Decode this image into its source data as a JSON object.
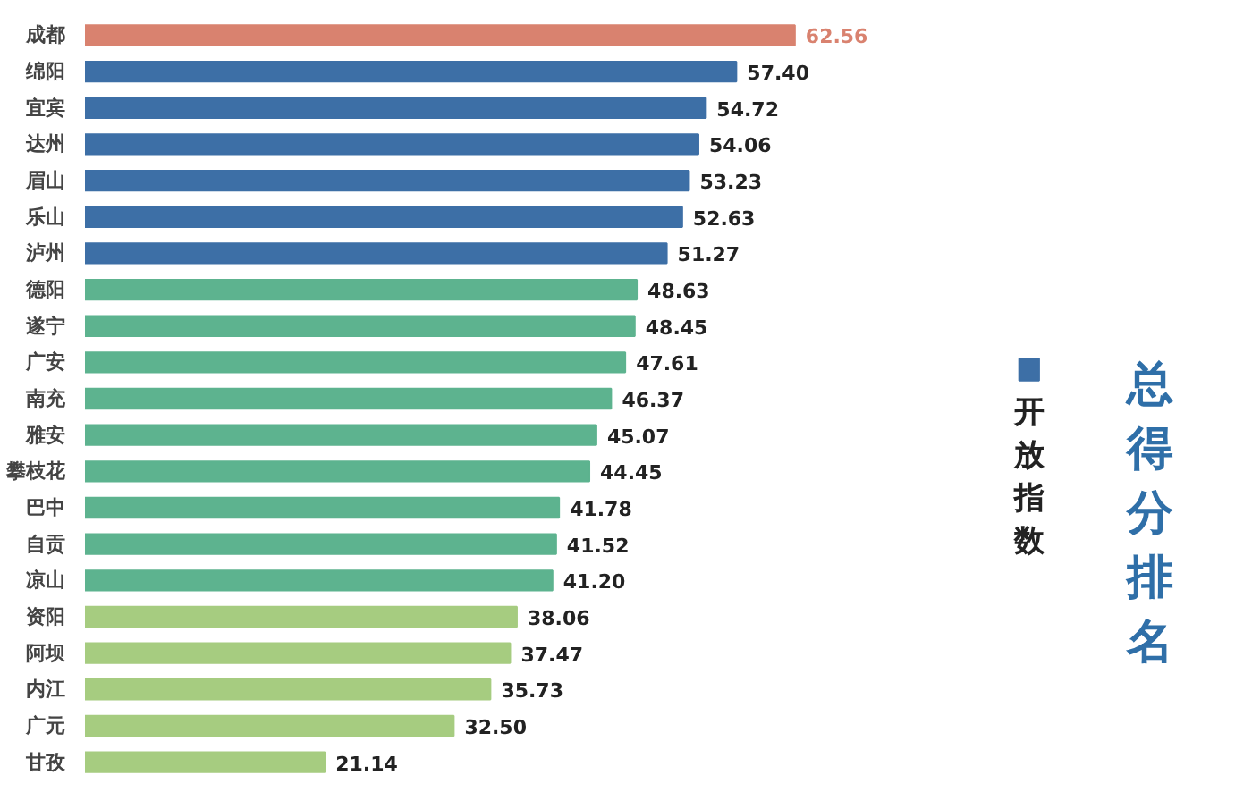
{
  "chart_data": {
    "type": "bar",
    "orientation": "horizontal",
    "title": "总得分排名",
    "categories": [
      "成都",
      "绵阳",
      "宜宾",
      "达州",
      "眉山",
      "乐山",
      "泸州",
      "德阳",
      "遂宁",
      "广安",
      "南充",
      "雅安",
      "攀枝花",
      "巴中",
      "自贡",
      "凉山",
      "资阳",
      "阿坝",
      "内江",
      "广元",
      "甘孜"
    ],
    "series": [
      {
        "name": "开放指数",
        "color": "#3d6fa6",
        "values": [
          62.56,
          57.4,
          54.72,
          54.06,
          53.23,
          52.63,
          51.27,
          48.63,
          48.45,
          47.61,
          46.37,
          45.07,
          44.45,
          41.78,
          41.52,
          41.2,
          38.06,
          37.47,
          35.73,
          32.5,
          21.14
        ],
        "value_labels": [
          "62.56",
          "57.40",
          "54.72",
          "54.06",
          "53.23",
          "52.63",
          "51.27",
          "48.63",
          "48.45",
          "47.61",
          "46.37",
          "45.07",
          "44.45",
          "41.78",
          "41.52",
          "41.20",
          "38.06",
          "37.47",
          "35.73",
          "32.50",
          "21.14"
        ],
        "colors": [
          "#d9826f",
          "#3d6fa6",
          "#3d6fa6",
          "#3d6fa6",
          "#3d6fa6",
          "#3d6fa6",
          "#3d6fa6",
          "#5db38f",
          "#5db38f",
          "#5db38f",
          "#5db38f",
          "#5db38f",
          "#5db38f",
          "#5db38f",
          "#5db38f",
          "#5db38f",
          "#a6cc80",
          "#a6cc80",
          "#a6cc80",
          "#a6cc80",
          "#a6cc80"
        ]
      }
    ],
    "legend": "right"
  }
}
